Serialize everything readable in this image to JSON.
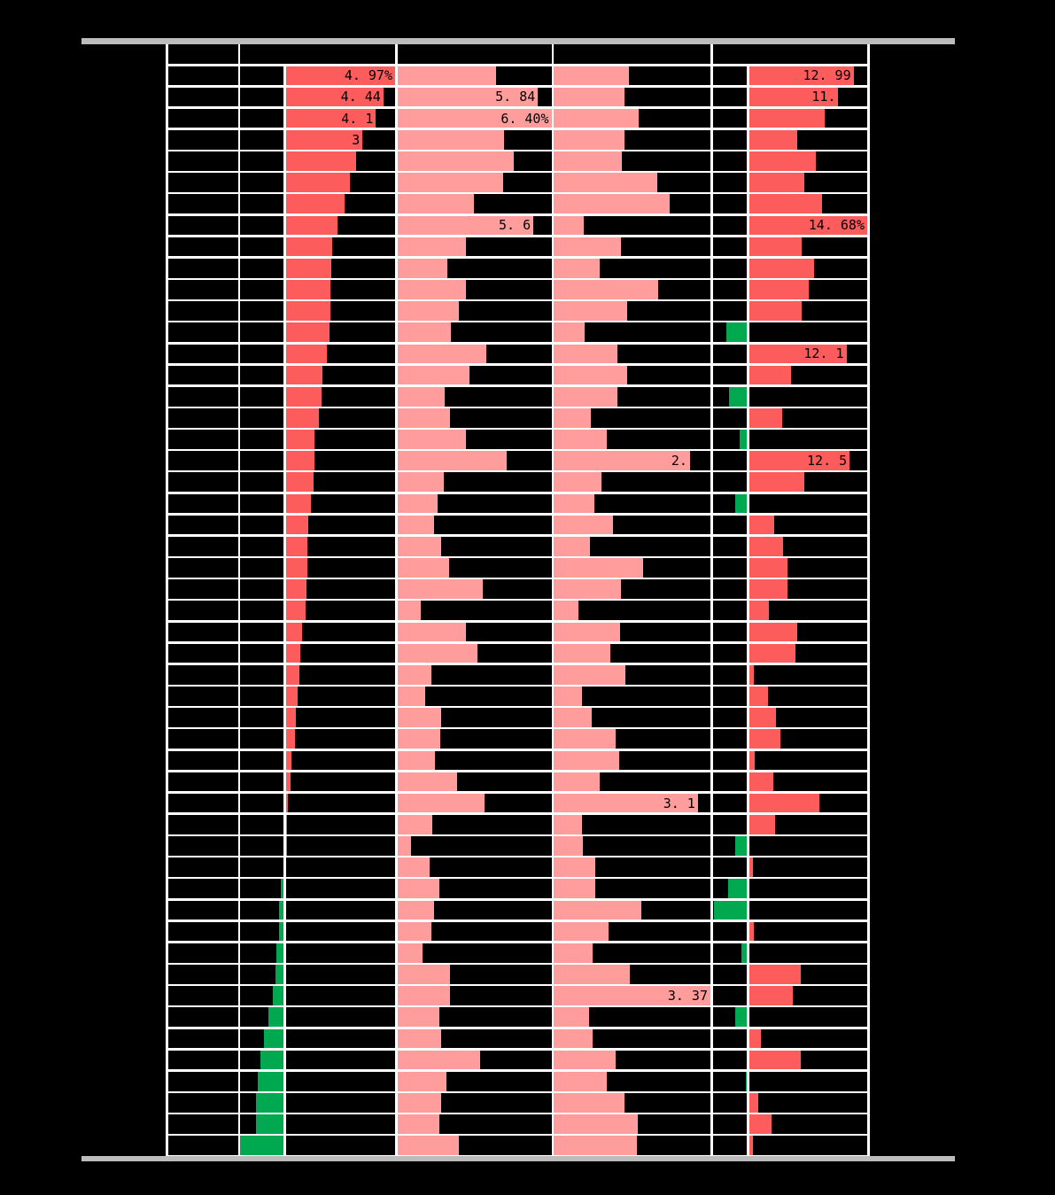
{
  "page": {
    "background": "#000000",
    "rule_color": "#bcbcbc",
    "grid_color": "#ffffff",
    "note": "Report-style table: row and header text is black-on-black (not legible); only bar data labels are visible."
  },
  "colors": {
    "positive_bar": "#fc5c5c",
    "negative_bar": "#00a950",
    "neutral_bar": "#ff9d9d",
    "label_text": "#000000"
  },
  "table": {
    "header_visible_text": "",
    "row_label_visible_text": "",
    "bar_labels": {
      "1": {
        "a": "4. 97%",
        "d": "12. 99"
      },
      "2": {
        "a": "4. 44",
        "b": "5. 84",
        "d": "11."
      },
      "3": {
        "a": "4. 1",
        "b": "6. 40%"
      },
      "4": {
        "a": "3"
      },
      "8": {
        "b": "5. 6",
        "d": "14. 68%"
      },
      "14": {
        "d": "12. 1"
      },
      "19": {
        "c": "2.",
        "d": "12. 5"
      },
      "35": {
        "c": "3. 1"
      },
      "44": {
        "c": "3. 37"
      }
    }
  },
  "chart_data": {
    "type": "bar",
    "orientation": "horizontal",
    "rows": 51,
    "row_labels_visible": false,
    "grid": true,
    "series": [
      {
        "name": "col2-signed-pct",
        "unit": "%",
        "axis_range": [
          -1.95,
          4.97
        ],
        "sorted": "descending",
        "values": [
          4.97,
          4.44,
          4.1,
          3.49,
          3.18,
          2.91,
          2.67,
          2.36,
          2.1,
          2.06,
          2.04,
          2.02,
          2.0,
          1.89,
          1.68,
          1.64,
          1.52,
          1.32,
          1.31,
          1.27,
          1.15,
          1.02,
          1.0,
          0.98,
          0.94,
          0.9,
          0.76,
          0.68,
          0.62,
          0.53,
          0.45,
          0.41,
          0.25,
          0.24,
          0.12,
          0.08,
          0.04,
          0.0,
          -0.1,
          -0.19,
          -0.19,
          -0.29,
          -0.35,
          -0.45,
          -0.68,
          -0.86,
          -1.03,
          -1.13,
          -1.23,
          -1.24,
          -1.95
        ]
      },
      {
        "name": "col3-pct",
        "unit": "%",
        "axis_range": [
          0,
          6.4
        ],
        "values": [
          4.1,
          5.84,
          6.4,
          4.42,
          4.85,
          4.38,
          3.17,
          5.65,
          2.85,
          2.08,
          2.86,
          2.55,
          2.22,
          3.71,
          3.0,
          1.95,
          2.18,
          2.86,
          4.53,
          1.92,
          1.67,
          1.51,
          1.81,
          2.14,
          3.56,
          0.98,
          2.85,
          3.34,
          1.43,
          1.17,
          1.81,
          1.77,
          1.58,
          2.48,
          3.63,
          1.47,
          0.57,
          1.36,
          1.73,
          1.54,
          1.43,
          1.05,
          2.18,
          2.19,
          1.73,
          1.81,
          3.45,
          2.05,
          1.81,
          1.73,
          2.55
        ]
      },
      {
        "name": "col4-pct",
        "unit": "%",
        "axis_range": [
          0,
          3.37
        ],
        "values": [
          1.62,
          1.52,
          1.83,
          1.52,
          1.47,
          2.22,
          2.49,
          0.65,
          1.44,
          0.99,
          2.24,
          1.58,
          0.66,
          1.37,
          1.58,
          1.37,
          0.8,
          1.14,
          2.93,
          1.02,
          0.88,
          1.28,
          0.78,
          1.93,
          1.44,
          0.53,
          1.42,
          1.21,
          1.54,
          0.6,
          0.82,
          1.33,
          1.41,
          0.99,
          3.1,
          0.6,
          0.63,
          0.89,
          0.89,
          1.89,
          1.18,
          0.84,
          1.64,
          3.37,
          0.76,
          0.84,
          1.33,
          1.15,
          1.52,
          1.81,
          1.79
        ]
      },
      {
        "name": "col5-signed-pct",
        "unit": "%",
        "axis_range": [
          -4.23,
          14.68
        ],
        "values": [
          12.99,
          11.1,
          9.44,
          5.96,
          8.26,
          6.87,
          9.07,
          14.68,
          6.5,
          8.12,
          7.4,
          6.5,
          -2.57,
          12.1,
          5.21,
          -2.18,
          4.09,
          -0.84,
          12.5,
          6.9,
          -1.45,
          3.14,
          4.21,
          4.82,
          4.82,
          2.42,
          5.95,
          5.82,
          0.57,
          2.31,
          3.36,
          3.92,
          0.7,
          2.98,
          8.75,
          3.25,
          -1.4,
          0.44,
          -2.34,
          -4.05,
          0.56,
          -0.67,
          6.4,
          5.39,
          -1.45,
          1.52,
          6.4,
          -0.11,
          1.18,
          2.8,
          0.44
        ]
      }
    ]
  }
}
